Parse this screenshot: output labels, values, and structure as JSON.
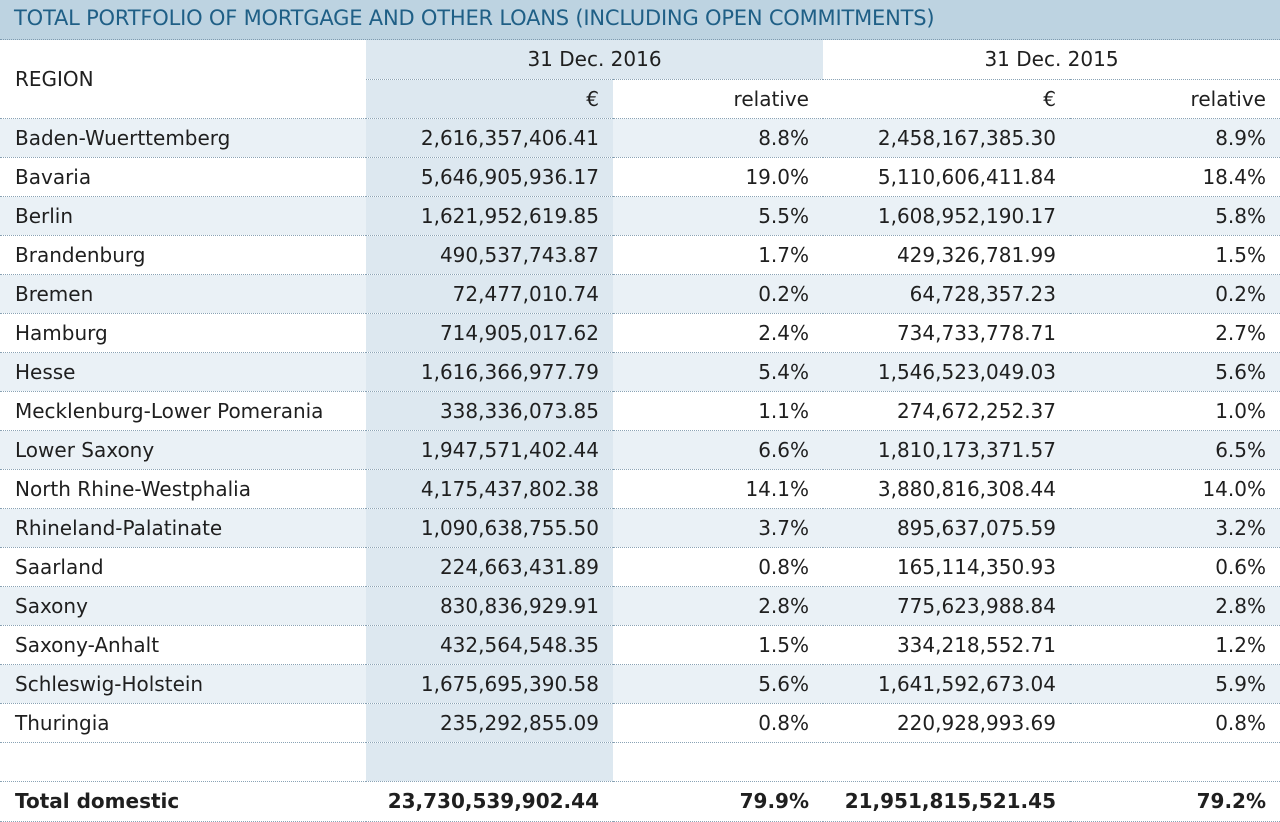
{
  "title": "TOTAL PORTFOLIO OF MORTGAGE AND OTHER LOANS (INCLUDING OPEN COMMITMENTS)",
  "header": {
    "region_label": "REGION",
    "year1": "31 Dec. 2016",
    "year2": "31 Dec. 2015",
    "currency1": "€",
    "relative1": "relative",
    "currency2": "€",
    "relative2": "relative"
  },
  "rows": [
    {
      "region": "Baden-Wuerttemberg",
      "eur2016": "2,616,357,406.41",
      "rel2016": "8.8%",
      "eur2015": "2,458,167,385.30",
      "rel2015": "8.9%"
    },
    {
      "region": "Bavaria",
      "eur2016": "5,646,905,936.17",
      "rel2016": "19.0%",
      "eur2015": "5,110,606,411.84",
      "rel2015": "18.4%"
    },
    {
      "region": "Berlin",
      "eur2016": "1,621,952,619.85",
      "rel2016": "5.5%",
      "eur2015": "1,608,952,190.17",
      "rel2015": "5.8%"
    },
    {
      "region": "Brandenburg",
      "eur2016": "490,537,743.87",
      "rel2016": "1.7%",
      "eur2015": "429,326,781.99",
      "rel2015": "1.5%"
    },
    {
      "region": "Bremen",
      "eur2016": "72,477,010.74",
      "rel2016": "0.2%",
      "eur2015": "64,728,357.23",
      "rel2015": "0.2%"
    },
    {
      "region": "Hamburg",
      "eur2016": "714,905,017.62",
      "rel2016": "2.4%",
      "eur2015": "734,733,778.71",
      "rel2015": "2.7%"
    },
    {
      "region": "Hesse",
      "eur2016": "1,616,366,977.79",
      "rel2016": "5.4%",
      "eur2015": "1,546,523,049.03",
      "rel2015": "5.6%"
    },
    {
      "region": "Mecklenburg-Lower Pomerania",
      "eur2016": "338,336,073.85",
      "rel2016": "1.1%",
      "eur2015": "274,672,252.37",
      "rel2015": "1.0%"
    },
    {
      "region": "Lower Saxony",
      "eur2016": "1,947,571,402.44",
      "rel2016": "6.6%",
      "eur2015": "1,810,173,371.57",
      "rel2015": "6.5%"
    },
    {
      "region": "North Rhine-Westphalia",
      "eur2016": "4,175,437,802.38",
      "rel2016": "14.1%",
      "eur2015": "3,880,816,308.44",
      "rel2015": "14.0%"
    },
    {
      "region": "Rhineland-Palatinate",
      "eur2016": "1,090,638,755.50",
      "rel2016": "3.7%",
      "eur2015": "895,637,075.59",
      "rel2015": "3.2%"
    },
    {
      "region": "Saarland",
      "eur2016": "224,663,431.89",
      "rel2016": "0.8%",
      "eur2015": "165,114,350.93",
      "rel2015": "0.6%"
    },
    {
      "region": "Saxony",
      "eur2016": "830,836,929.91",
      "rel2016": "2.8%",
      "eur2015": "775,623,988.84",
      "rel2015": "2.8%"
    },
    {
      "region": "Saxony-Anhalt",
      "eur2016": "432,564,548.35",
      "rel2016": "1.5%",
      "eur2015": "334,218,552.71",
      "rel2015": "1.2%"
    },
    {
      "region": "Schleswig-Holstein",
      "eur2016": "1,675,695,390.58",
      "rel2016": "5.6%",
      "eur2015": "1,641,592,673.04",
      "rel2015": "5.9%"
    },
    {
      "region": "Thuringia",
      "eur2016": "235,292,855.09",
      "rel2016": "0.8%",
      "eur2015": "220,928,993.69",
      "rel2015": "0.8%"
    }
  ],
  "total": {
    "label": "Total domestic",
    "eur2016": "23,730,539,902.44",
    "rel2016": "79.9%",
    "eur2015": "21,951,815,521.45",
    "rel2015": "79.2%"
  },
  "colors": {
    "title_bg": "#bdd3e1",
    "title_text": "#1f5f86",
    "column_shade": "#dde8f0",
    "row_alt": "#eaf1f6"
  }
}
